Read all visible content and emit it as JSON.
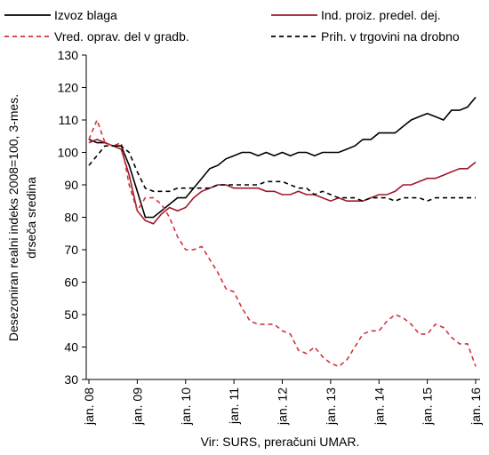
{
  "chart_data": {
    "type": "line",
    "y_label": [
      "Desezoniran realni indeks 2008=100, 3-mes.",
      "drseča sredina"
    ],
    "source": "Vir: SURS, preračuni UMAR.",
    "categories": [
      "jan. 08",
      null,
      null,
      null,
      null,
      null,
      "jan. 09",
      null,
      null,
      null,
      null,
      null,
      "jan. 10",
      null,
      null,
      null,
      null,
      null,
      "jan. 11",
      null,
      null,
      null,
      null,
      null,
      "jan. 12",
      null,
      null,
      null,
      null,
      null,
      "jan. 13",
      null,
      null,
      null,
      null,
      null,
      "jan. 14",
      null,
      null,
      null,
      null,
      null,
      "jan. 15",
      null,
      null,
      null,
      null,
      null,
      "jan. 16"
    ],
    "ylim": [
      30,
      130
    ],
    "yticks": [
      30,
      40,
      50,
      60,
      70,
      80,
      90,
      100,
      110,
      120,
      130
    ],
    "grid": false,
    "series": [
      {
        "name": "Izvoz blaga",
        "color": "#000000",
        "dashed": false,
        "values": [
          104,
          103,
          103,
          102,
          102,
          96,
          88,
          80,
          80,
          82,
          84,
          86,
          86,
          89,
          92,
          95,
          96,
          98,
          99,
          100,
          100,
          99,
          100,
          99,
          100,
          99,
          100,
          100,
          99,
          100,
          100,
          100,
          101,
          102,
          104,
          104,
          106,
          106,
          106,
          108,
          110,
          111,
          112,
          111,
          110,
          113,
          113,
          114,
          117
        ]
      },
      {
        "name": "Ind. proiz. predel. dej.",
        "color": "#a0182b",
        "dashed": false,
        "values": [
          103,
          104,
          103,
          102,
          101,
          93,
          82,
          79,
          78,
          81,
          83,
          82,
          83,
          86,
          88,
          89,
          90,
          90,
          89,
          89,
          89,
          89,
          88,
          88,
          87,
          87,
          88,
          87,
          87,
          86,
          85,
          86,
          85,
          85,
          85,
          86,
          87,
          87,
          88,
          90,
          90,
          91,
          92,
          92,
          93,
          94,
          95,
          95,
          97
        ]
      },
      {
        "name": "Vred. oprav. del v gradb.",
        "color": "#d0343a",
        "dashed": true,
        "values": [
          104,
          110,
          103,
          102,
          103,
          90,
          82,
          86,
          86,
          84,
          80,
          74,
          70,
          70,
          71,
          67,
          63,
          58,
          57,
          52,
          48,
          47,
          47,
          47,
          45,
          44,
          39,
          38,
          40,
          37,
          35,
          34,
          36,
          40,
          44,
          45,
          45,
          48,
          50,
          49,
          47,
          44,
          44,
          47,
          46,
          43,
          41,
          41,
          34
        ]
      },
      {
        "name": "Prih. v trgovini na drobno",
        "color": "#000000",
        "dashed": true,
        "values": [
          96,
          99,
          102,
          102,
          102,
          100,
          94,
          89,
          88,
          88,
          88,
          89,
          89,
          89,
          89,
          89,
          90,
          90,
          90,
          90,
          90,
          90,
          91,
          91,
          91,
          90,
          89,
          89,
          87,
          88,
          87,
          86,
          86,
          86,
          85,
          86,
          86,
          86,
          85,
          86,
          86,
          86,
          85,
          86,
          86,
          86,
          86,
          86,
          86
        ]
      }
    ]
  }
}
